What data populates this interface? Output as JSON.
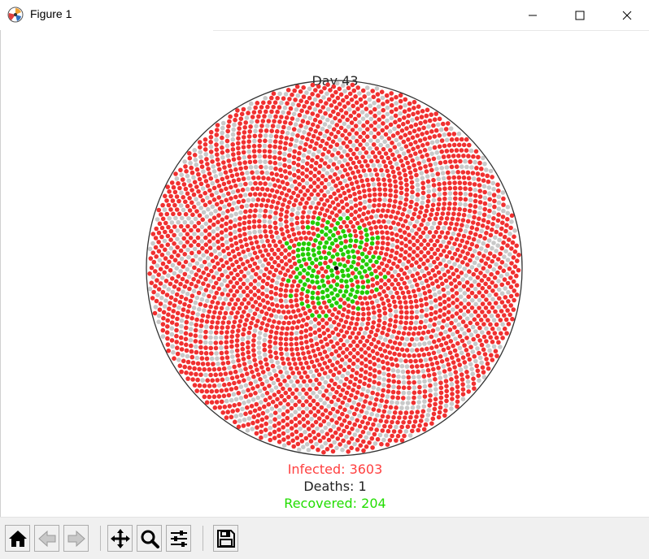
{
  "window": {
    "title": "Figure 1",
    "controls": [
      "minimize",
      "maximize",
      "close"
    ]
  },
  "plot": {
    "title": "Day 43",
    "infected_label": "Infected: 3603",
    "deaths_label": "Deaths: 1",
    "recovered_label": "Recovered: 204",
    "colors": {
      "infected": "#f03030",
      "susceptible": "#c9c9c9",
      "recovered": "#22cc00",
      "dead": "#000000",
      "infected_text": "#ff4040",
      "deaths_text": "#222222",
      "recovered_text": "#22dd00",
      "circle_edge": "#333333"
    }
  },
  "toolbar": {
    "buttons": [
      "home-icon",
      "back-icon",
      "forward-icon",
      "pan-icon",
      "zoom-icon",
      "configure-subplots-icon",
      "save-icon"
    ]
  }
}
